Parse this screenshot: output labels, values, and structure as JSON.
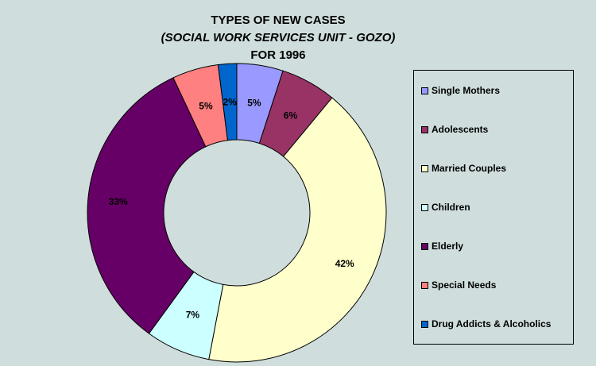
{
  "chart_data": {
    "type": "pie",
    "donut": true,
    "title": "TYPES OF NEW CASES",
    "subtitle": "(SOCIAL WORK SERVICES UNIT - GOZO)",
    "subtitle2": "FOR 1996",
    "legend_position": "right",
    "slices": [
      {
        "name": "Single Mothers",
        "value": 5,
        "label": "5%",
        "color": "#9999ff"
      },
      {
        "name": "Adolescents",
        "value": 6,
        "label": "6%",
        "color": "#993366"
      },
      {
        "name": "Married Couples",
        "value": 42,
        "label": "42%",
        "color": "#ffffcc"
      },
      {
        "name": "Children",
        "value": 7,
        "label": "7%",
        "color": "#ccffff"
      },
      {
        "name": "Elderly",
        "value": 33,
        "label": "33%",
        "color": "#660066"
      },
      {
        "name": "Special Needs",
        "value": 5,
        "label": "5%",
        "color": "#ff8080"
      },
      {
        "name": "Drug Addicts & Alcoholics",
        "value": 2,
        "label": "2%",
        "color": "#0066cc"
      }
    ]
  }
}
